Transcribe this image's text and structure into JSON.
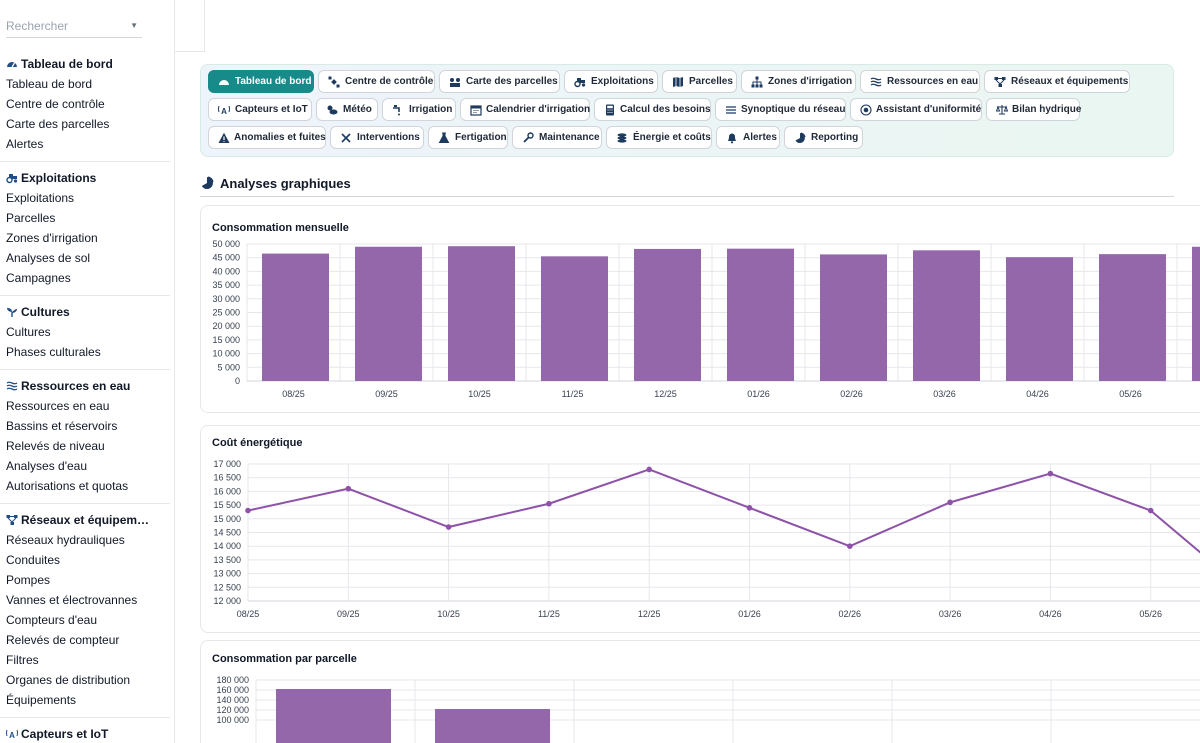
{
  "search": {
    "placeholder": "Rechercher"
  },
  "sidebar": {
    "sections": [
      {
        "title": "Tableau de bord",
        "icon": "dashboard-icon",
        "items": [
          "Tableau de bord",
          "Centre de contrôle",
          "Carte des parcelles",
          "Alertes"
        ]
      },
      {
        "title": "Exploitations",
        "icon": "tractor-icon",
        "items": [
          "Exploitations",
          "Parcelles",
          "Zones d'irrigation",
          "Analyses de sol",
          "Campagnes"
        ]
      },
      {
        "title": "Cultures",
        "icon": "seedling-icon",
        "items": [
          "Cultures",
          "Phases culturales"
        ]
      },
      {
        "title": "Ressources en eau",
        "icon": "water-icon",
        "items": [
          "Ressources en eau",
          "Bassins et réservoirs",
          "Relevés de niveau",
          "Analyses d'eau",
          "Autorisations et quotas"
        ]
      },
      {
        "title": "Réseaux et équipem…",
        "icon": "network-icon",
        "items": [
          "Réseaux hydrauliques",
          "Conduites",
          "Pompes",
          "Vannes et électrovannes",
          "Compteurs d'eau",
          "Relevés de compteur",
          "Filtres",
          "Organes de distribution",
          "Équipements"
        ]
      },
      {
        "title": "Capteurs et IoT",
        "icon": "sensor-icon",
        "items": []
      }
    ]
  },
  "nav": {
    "pills": [
      {
        "label": "Tableau de bord",
        "icon": "dashboard-icon",
        "active": true
      },
      {
        "label": "Centre de contrôle",
        "icon": "satellite-icon",
        "active": false
      },
      {
        "label": "Carte des parcelles",
        "icon": "map-pins-icon",
        "active": false
      },
      {
        "label": "Exploitations",
        "icon": "tractor-icon",
        "active": false
      },
      {
        "label": "Parcelles",
        "icon": "map-icon",
        "active": false
      },
      {
        "label": "Zones d'irrigation",
        "icon": "sitemap-icon",
        "active": false
      },
      {
        "label": "Ressources en eau",
        "icon": "water-icon",
        "active": false
      },
      {
        "label": "Réseaux et équipements",
        "icon": "network-icon",
        "active": false
      },
      {
        "label": "Capteurs et IoT",
        "icon": "sensor-icon",
        "active": false
      },
      {
        "label": "Météo",
        "icon": "cloud-sun-icon",
        "active": false
      },
      {
        "label": "Irrigation",
        "icon": "faucet-icon",
        "active": false
      },
      {
        "label": "Calendrier d'irrigation",
        "icon": "calendar-icon",
        "active": false
      },
      {
        "label": "Calcul des besoins",
        "icon": "calculator-icon",
        "active": false
      },
      {
        "label": "Synoptique du réseau",
        "icon": "list-icon",
        "active": false
      },
      {
        "label": "Assistant d'uniformité",
        "icon": "target-icon",
        "active": false
      },
      {
        "label": "Bilan hydrique",
        "icon": "balance-icon",
        "active": false
      },
      {
        "label": "Anomalies et fuites",
        "icon": "warning-icon",
        "active": false
      },
      {
        "label": "Interventions",
        "icon": "tools-icon",
        "active": false
      },
      {
        "label": "Fertigation",
        "icon": "flask-icon",
        "active": false
      },
      {
        "label": "Maintenance",
        "icon": "wrench-icon",
        "active": false
      },
      {
        "label": "Énergie et coûts",
        "icon": "coins-icon",
        "active": false
      },
      {
        "label": "Alertes",
        "icon": "bell-icon",
        "active": false
      },
      {
        "label": "Reporting",
        "icon": "pie-chart-icon",
        "active": false
      }
    ]
  },
  "analyses": {
    "title": "Analyses graphiques",
    "icon": "pie-chart-icon"
  },
  "colors": {
    "accent": "#178a8a",
    "bar": "#9467ab",
    "line": "#8e52a8"
  },
  "chart_data": [
    {
      "type": "bar",
      "title": "Consommation mensuelle",
      "categories": [
        "08/25",
        "09/25",
        "10/25",
        "11/25",
        "12/25",
        "01/26",
        "02/26",
        "03/26",
        "04/26",
        "05/26"
      ],
      "values": [
        46500,
        49000,
        49200,
        45500,
        48200,
        48300,
        46200,
        47700,
        45200,
        46300
      ],
      "ylim": [
        0,
        50000
      ],
      "yticks": [
        "50 000",
        "45 000",
        "40 000",
        "35 000",
        "30 000",
        "25 000",
        "20 000",
        "15 000",
        "10 000",
        "5 000",
        "0"
      ],
      "grid": true
    },
    {
      "type": "line",
      "title": "Coût énergétique",
      "categories": [
        "08/25",
        "09/25",
        "10/25",
        "11/25",
        "12/25",
        "01/26",
        "02/26",
        "03/26",
        "04/26",
        "05/26"
      ],
      "values": [
        15300,
        16100,
        14700,
        15550,
        16800,
        15400,
        14000,
        15600,
        16650,
        15300
      ],
      "ylim": [
        12000,
        17000
      ],
      "yticks": [
        "17 000",
        "16 500",
        "16 000",
        "15 500",
        "15 000",
        "14 500",
        "14 000",
        "13 500",
        "13 000",
        "12 500",
        "12 000"
      ],
      "grid": true
    },
    {
      "type": "bar",
      "title": "Consommation par parcelle",
      "values": [
        162000,
        122000
      ],
      "ylim": [
        0,
        180000
      ],
      "yticks": [
        "180 000",
        "160 000",
        "140 000",
        "120 000",
        "100 000"
      ],
      "grid": true
    }
  ]
}
